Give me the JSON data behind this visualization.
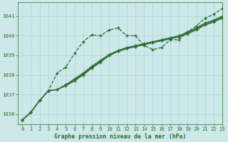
{
  "title": "Graphe pression niveau de la mer (hPa)",
  "bg_color": "#cce8e8",
  "grid_color": "#aad4d4",
  "line_color": "#2d6a2d",
  "xlim": [
    -0.5,
    23
  ],
  "ylim": [
    1035.5,
    1041.7
  ],
  "yticks": [
    1036,
    1037,
    1038,
    1039,
    1040,
    1041
  ],
  "xticks": [
    0,
    1,
    2,
    3,
    4,
    5,
    6,
    7,
    8,
    9,
    10,
    11,
    12,
    13,
    14,
    15,
    16,
    17,
    18,
    19,
    20,
    21,
    22,
    23
  ],
  "series": [
    [
      1035.7,
      1036.1,
      1036.7,
      1037.2,
      1038.1,
      1038.4,
      1039.1,
      1039.7,
      1040.05,
      1040.0,
      1040.3,
      1040.4,
      1040.0,
      1040.0,
      1039.5,
      1039.3,
      1039.4,
      1039.8,
      1039.8,
      1040.2,
      1040.5,
      1040.9,
      1041.1,
      1041.4
    ],
    [
      1035.7,
      1036.1,
      1036.7,
      1037.2,
      1037.25,
      1037.45,
      1037.7,
      1038.0,
      1038.35,
      1038.65,
      1039.0,
      1039.2,
      1039.35,
      1039.45,
      1039.55,
      1039.65,
      1039.75,
      1039.85,
      1039.95,
      1040.15,
      1040.35,
      1040.6,
      1040.75,
      1040.95
    ],
    [
      1035.7,
      1036.1,
      1036.7,
      1037.2,
      1037.25,
      1037.5,
      1037.8,
      1038.1,
      1038.45,
      1038.75,
      1039.05,
      1039.25,
      1039.4,
      1039.5,
      1039.6,
      1039.7,
      1039.8,
      1039.9,
      1040.0,
      1040.2,
      1040.4,
      1040.65,
      1040.8,
      1041.0
    ],
    [
      1035.7,
      1036.1,
      1036.7,
      1037.2,
      1037.25,
      1037.5,
      1037.75,
      1038.05,
      1038.4,
      1038.7,
      1039.0,
      1039.2,
      1039.35,
      1039.45,
      1039.55,
      1039.65,
      1039.75,
      1039.85,
      1039.95,
      1040.1,
      1040.3,
      1040.55,
      1040.7,
      1040.9
    ]
  ]
}
